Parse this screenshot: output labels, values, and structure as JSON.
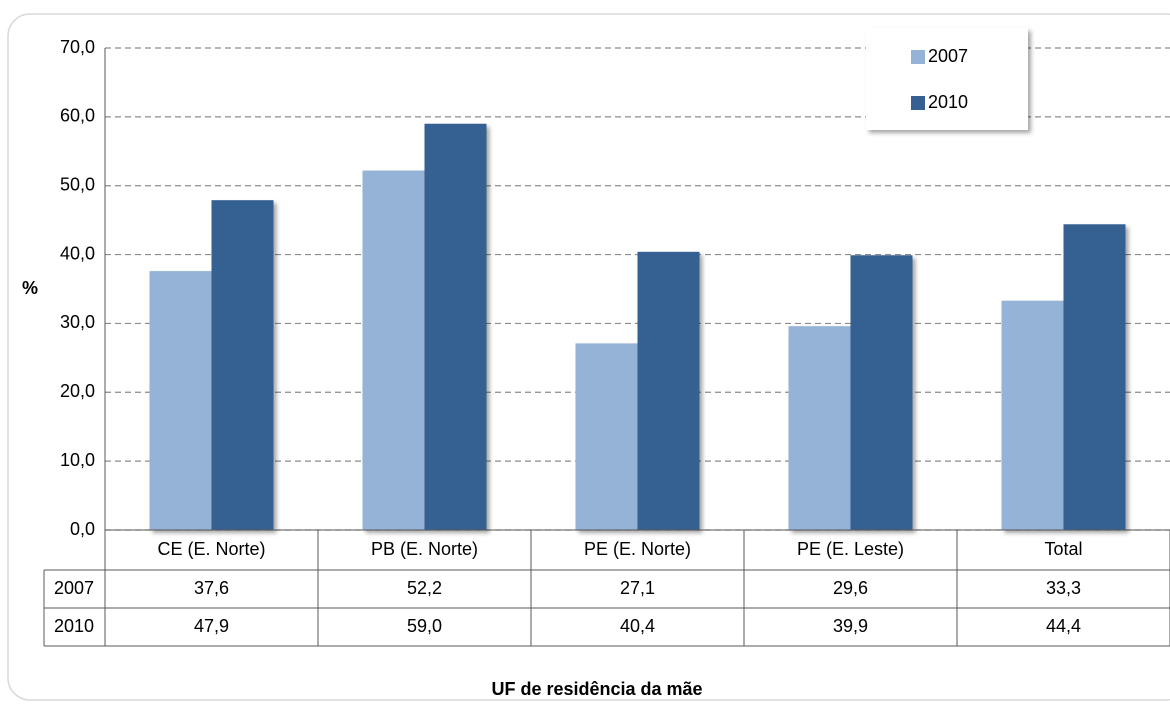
{
  "chart_data": {
    "type": "bar",
    "y_label": "%",
    "x_label": "UF de residência da mãe",
    "categories": [
      "CE (E. Norte)",
      "PB (E. Norte)",
      "PE (E. Norte)",
      "PE (E. Leste)",
      "Total"
    ],
    "series": [
      {
        "name": "2007",
        "color": "#95b3d7",
        "values": [
          37.6,
          52.2,
          27.1,
          29.6,
          33.3
        ],
        "value_labels": [
          "37,6",
          "52,2",
          "27,1",
          "29,6",
          "33,3"
        ]
      },
      {
        "name": "2010",
        "color": "#366092",
        "values": [
          47.9,
          59.0,
          40.4,
          39.9,
          44.4
        ],
        "value_labels": [
          "47,9",
          "59,0",
          "40,4",
          "39,9",
          "44,4"
        ]
      }
    ],
    "ylim": [
      0,
      70
    ],
    "yticks": [
      {
        "value": 0,
        "label": "0,0"
      },
      {
        "value": 10,
        "label": "10,0"
      },
      {
        "value": 20,
        "label": "20,0"
      },
      {
        "value": 30,
        "label": "30,0"
      },
      {
        "value": 40,
        "label": "40,0"
      },
      {
        "value": 50,
        "label": "50,0"
      },
      {
        "value": 60,
        "label": "60,0"
      },
      {
        "value": 70,
        "label": "70,0"
      }
    ],
    "grid": true,
    "legend": "top-right"
  }
}
